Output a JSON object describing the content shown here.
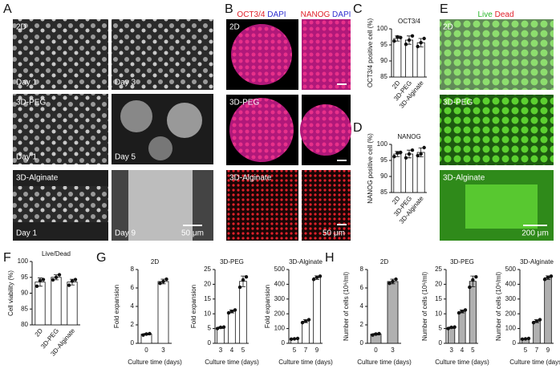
{
  "panel_letters": [
    "A",
    "B",
    "C",
    "D",
    "E",
    "F",
    "G",
    "H"
  ],
  "images": {
    "A": {
      "tiles": [
        [
          "2D",
          "Day 1"
        ],
        [
          "Day 3"
        ],
        [
          "3D-PEG",
          "Day 1"
        ],
        [
          "Day 5"
        ],
        [
          "3D-Alginate",
          "Day 1"
        ],
        [
          "Day 9"
        ]
      ],
      "scale_bar": "50 μm"
    },
    "B": {
      "headers": [
        [
          "OCT3/4",
          "DAPI"
        ],
        [
          "NANOG",
          "DAPI"
        ]
      ],
      "rows": [
        "2D",
        "3D-PEG",
        "3D-Alginate"
      ],
      "scale_bar": "50 μm"
    },
    "E": {
      "header": [
        "Live",
        "Dead"
      ],
      "rows": [
        "2D",
        "3D-PEG",
        "3D-Alginate"
      ],
      "scale_bar": "200 μm"
    }
  },
  "chart_data": [
    {
      "type": "bar",
      "title": "OCT3/4",
      "y_label": "OCT3/4 positive cell (%)",
      "categories": [
        "2D",
        "3D-PEG",
        "3D-Alginate"
      ],
      "values": [
        97,
        96.5,
        95.7
      ],
      "errors": [
        0.8,
        1.3,
        1.3
      ],
      "points": [
        [
          96.2,
          97.5,
          97.3
        ],
        [
          95.2,
          96.5,
          97.8
        ],
        [
          94.5,
          95.7,
          97
        ]
      ],
      "ylim": [
        85,
        100
      ],
      "yticks": [
        85,
        90,
        95,
        100
      ],
      "color": "#ffffff"
    },
    {
      "type": "bar",
      "title": "NANOG",
      "y_label": "NANOG positive cell (%)",
      "categories": [
        "2D",
        "3D-PEG",
        "3D-Alginate"
      ],
      "values": [
        97,
        97,
        97.5
      ],
      "errors": [
        0.8,
        1.2,
        1.4
      ],
      "points": [
        [
          96.2,
          97.3,
          97.5
        ],
        [
          95.8,
          97,
          98.2
        ],
        [
          96.5,
          97,
          99
        ]
      ],
      "ylim": [
        85,
        100
      ],
      "yticks": [
        85,
        90,
        95,
        100
      ],
      "color": "#ffffff"
    },
    {
      "type": "bar",
      "title": "Live/Dead",
      "y_label": "Cell viability (%)",
      "categories": [
        "2D",
        "3D-PEG",
        "3D-Alginate"
      ],
      "values": [
        93.5,
        95,
        93.5
      ],
      "errors": [
        1.3,
        0.8,
        0.9
      ],
      "points": [
        [
          92.2,
          94,
          94.3
        ],
        [
          94.2,
          95,
          95.8
        ],
        [
          92.5,
          93.8,
          94.3
        ]
      ],
      "ylim": [
        80,
        100
      ],
      "yticks": [
        80,
        85,
        90,
        95,
        100
      ],
      "color": "#ffffff"
    },
    {
      "type": "bar",
      "title": "2D",
      "y_label": "Fold expansion",
      "x_label": "Culture time (days)",
      "categories": [
        "0",
        "3"
      ],
      "values": [
        1,
        6.7
      ],
      "errors": [
        0.1,
        0.25
      ],
      "points": [
        [
          0.9,
          1,
          1.05
        ],
        [
          6.5,
          6.7,
          6.95
        ]
      ],
      "ylim": [
        0,
        8
      ],
      "yticks": [
        0,
        2,
        4,
        6,
        8
      ],
      "color": "#ffffff"
    },
    {
      "type": "bar",
      "title": "3D-PEG",
      "y_label": "Fold expansion",
      "x_label": "Culture time (days)",
      "categories": [
        "3",
        "4",
        "5"
      ],
      "values": [
        5.3,
        10.8,
        21
      ],
      "errors": [
        0.3,
        0.5,
        1.8
      ],
      "points": [
        [
          5,
          5.4,
          5.5
        ],
        [
          10.3,
          10.8,
          11.3
        ],
        [
          19,
          21.5,
          22.5
        ]
      ],
      "ylim": [
        0,
        25
      ],
      "yticks": [
        0,
        5,
        10,
        15,
        20,
        25
      ],
      "color": "#ffffff"
    },
    {
      "type": "bar",
      "title": "3D-Alginate",
      "y_label": "Fold expansion",
      "x_label": "Culture time (days)",
      "categories": [
        "5",
        "7",
        "9"
      ],
      "values": [
        30,
        150,
        445
      ],
      "errors": [
        3,
        10,
        12
      ],
      "points": [
        [
          28,
          30,
          33
        ],
        [
          140,
          150,
          160
        ],
        [
          433,
          447,
          455
        ]
      ],
      "ylim": [
        0,
        500
      ],
      "yticks": [
        0,
        100,
        200,
        300,
        400,
        500
      ],
      "color": "#ffffff"
    },
    {
      "type": "bar",
      "title": "2D",
      "y_label": "Number of cells (10⁶/ml)",
      "x_label": "Culture time (days)",
      "categories": [
        "0",
        "3"
      ],
      "values": [
        1,
        6.7
      ],
      "errors": [
        0.1,
        0.25
      ],
      "points": [
        [
          0.9,
          1,
          1.05
        ],
        [
          6.5,
          6.7,
          6.95
        ]
      ],
      "ylim": [
        0,
        8
      ],
      "yticks": [
        0,
        2,
        4,
        6,
        8
      ],
      "color": "#b0b0b0"
    },
    {
      "type": "bar",
      "title": "3D-PEG",
      "y_label": "Number of cells (10⁶/ml)",
      "x_label": "Culture time (days)",
      "categories": [
        "3",
        "4",
        "5"
      ],
      "values": [
        5.3,
        10.8,
        21
      ],
      "errors": [
        0.3,
        0.5,
        1.8
      ],
      "points": [
        [
          5,
          5.4,
          5.5
        ],
        [
          10.3,
          10.8,
          11.3
        ],
        [
          19,
          21.5,
          22.5
        ]
      ],
      "ylim": [
        0,
        25
      ],
      "yticks": [
        0,
        5,
        10,
        15,
        20,
        25
      ],
      "color": "#b0b0b0"
    },
    {
      "type": "bar",
      "title": "3D-Alginate",
      "y_label": "Number of cells (10⁶/ml)",
      "x_label": "Culture time (days)",
      "categories": [
        "5",
        "7",
        "9"
      ],
      "values": [
        30,
        150,
        445
      ],
      "errors": [
        3,
        10,
        12
      ],
      "points": [
        [
          28,
          30,
          33
        ],
        [
          140,
          150,
          160
        ],
        [
          433,
          447,
          455
        ]
      ],
      "ylim": [
        0,
        500
      ],
      "yticks": [
        0,
        100,
        200,
        300,
        400,
        500
      ],
      "color": "#b0b0b0"
    }
  ]
}
